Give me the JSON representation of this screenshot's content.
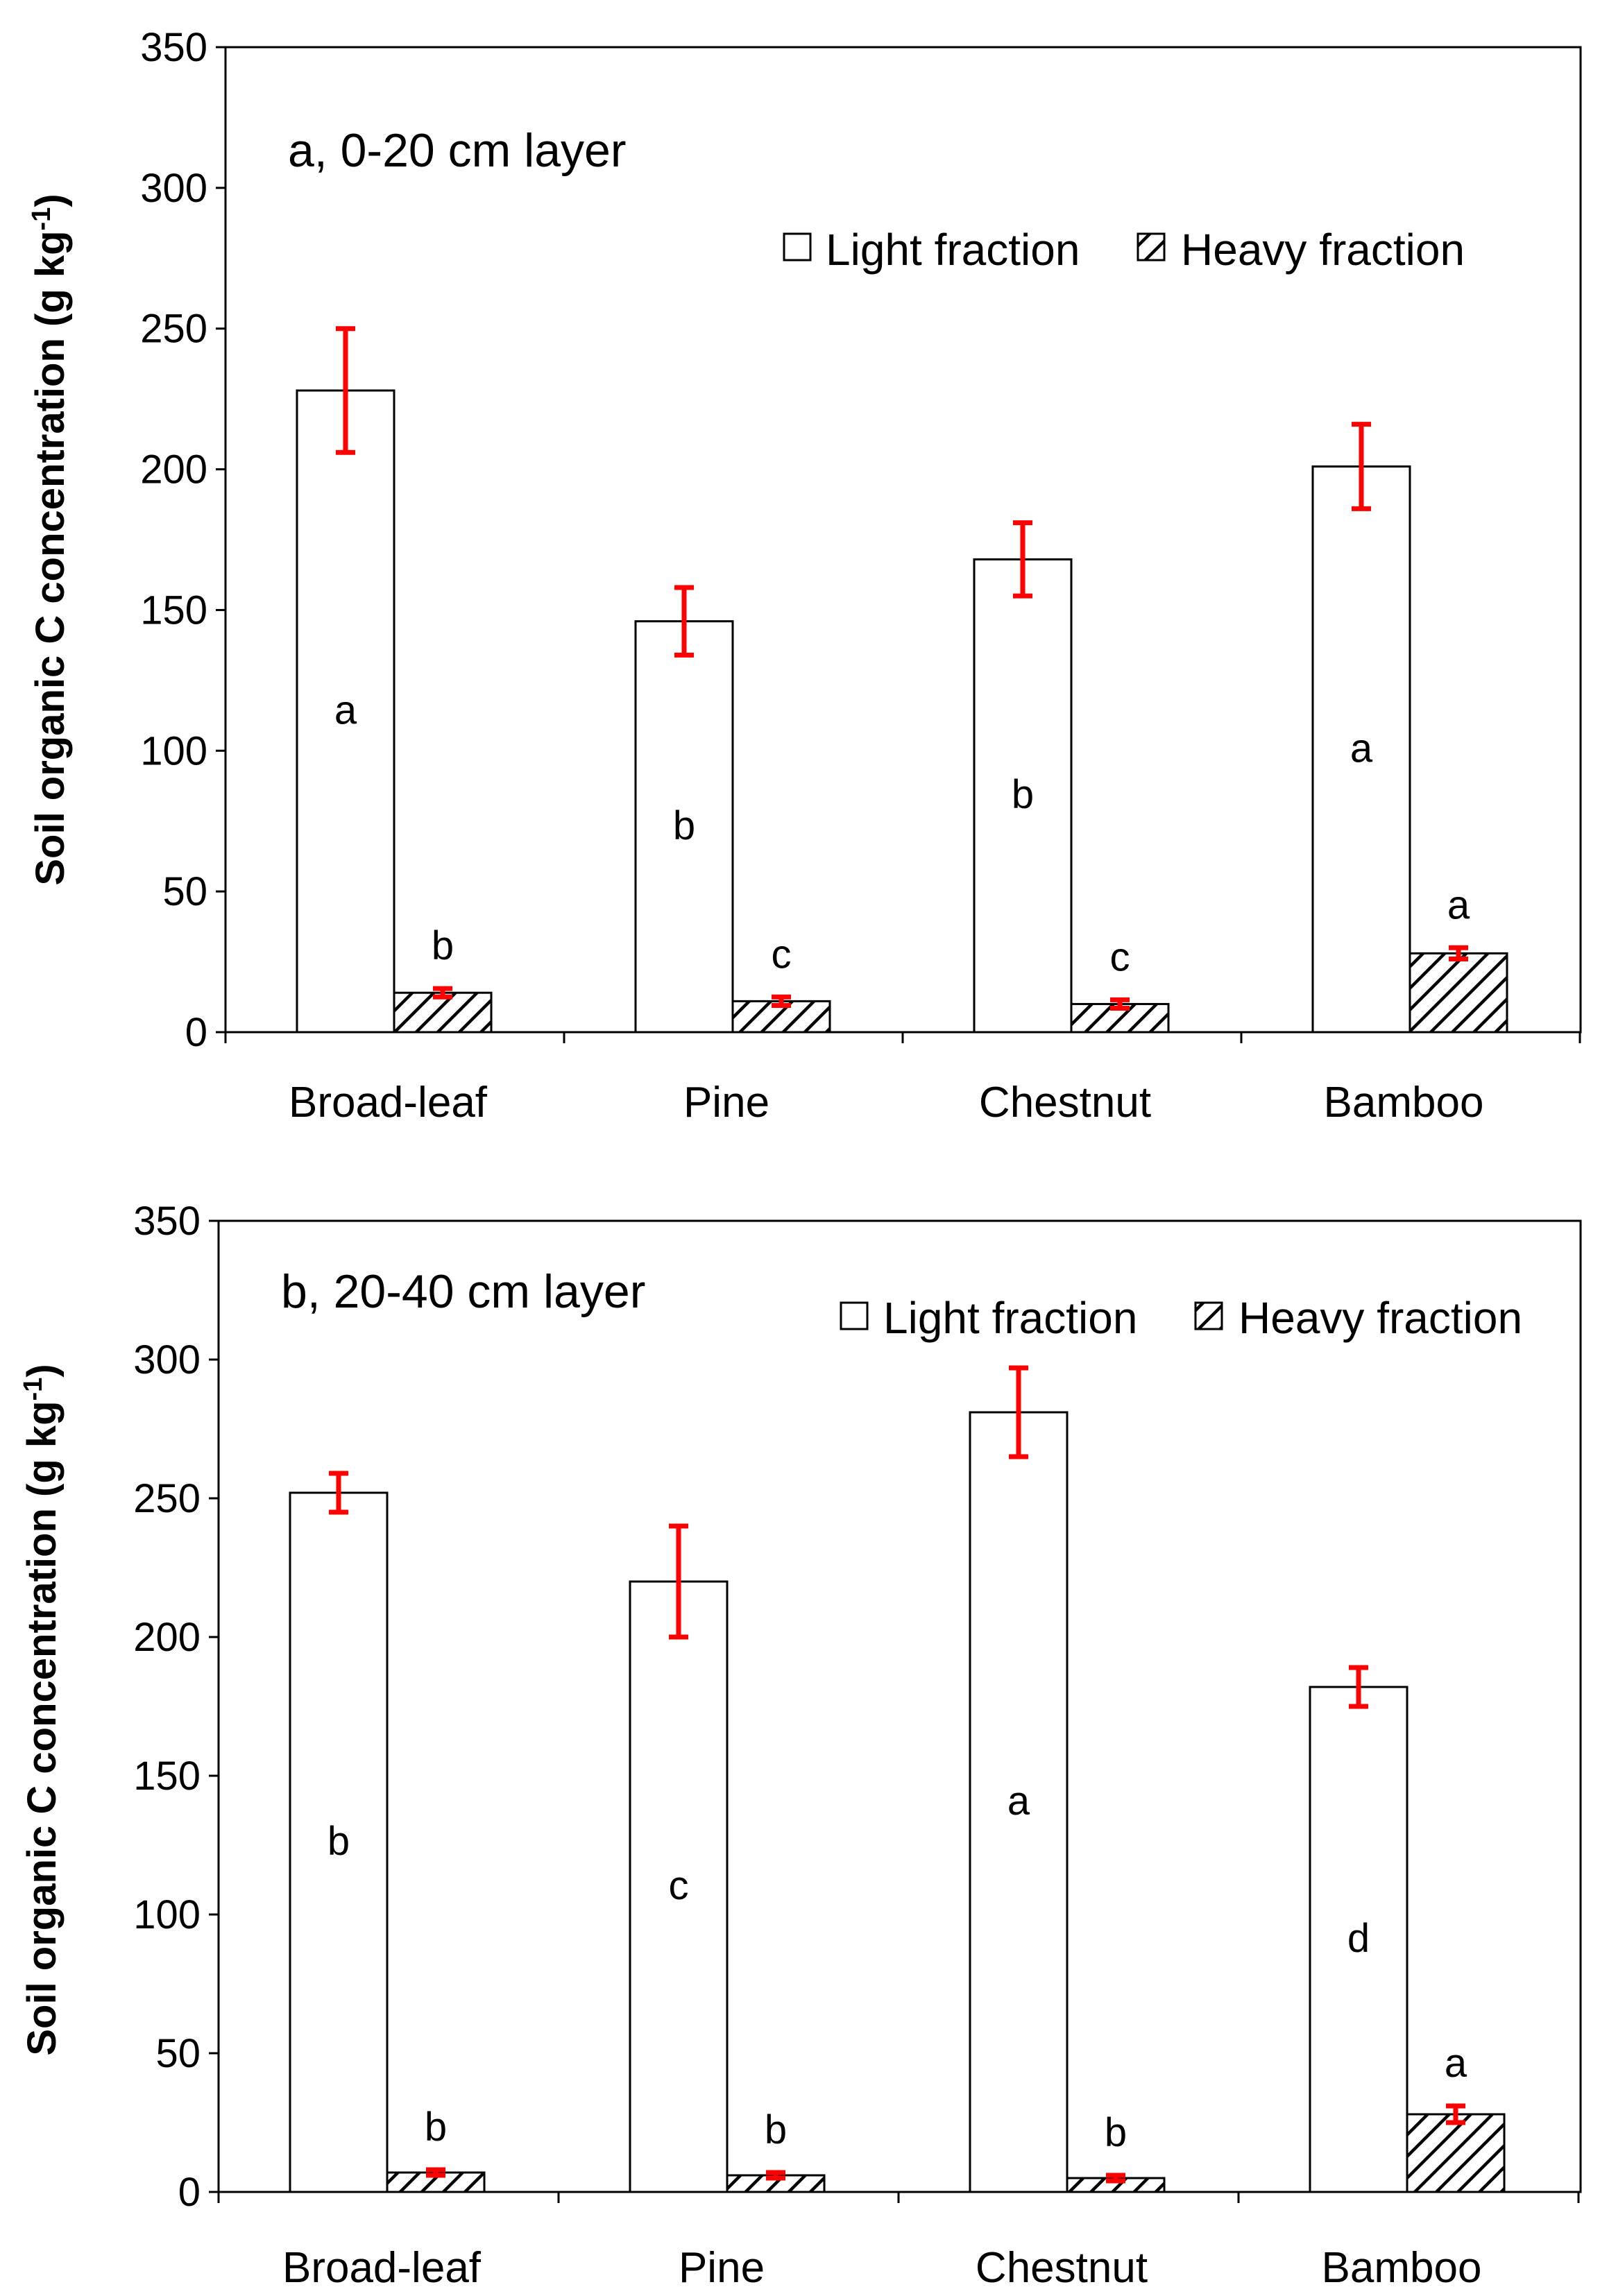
{
  "chart_data": [
    {
      "type": "bar",
      "title": "a, 0-20 cm layer",
      "ylabel": "Soil organic C concentration (g kg",
      "ylabel_sup": "-1",
      "ylabel_close": ")",
      "ylim": [
        0,
        350
      ],
      "yticks": [
        "0",
        "50",
        "100",
        "150",
        "200",
        "250",
        "300",
        "350"
      ],
      "categories": [
        "Broad-leaf",
        "Pine",
        "Chestnut",
        "Bamboo"
      ],
      "legend": [
        "Light fraction",
        "Heavy fraction"
      ],
      "series": [
        {
          "name": "Light fraction",
          "values": [
            228,
            146,
            168,
            201
          ],
          "errors": [
            22,
            12,
            13,
            15
          ],
          "letters": [
            "a",
            "b",
            "b",
            "a"
          ]
        },
        {
          "name": "Heavy fraction",
          "values": [
            14,
            11,
            10,
            28
          ],
          "errors": [
            1.5,
            1.5,
            1.5,
            2
          ],
          "letters": [
            "b",
            "c",
            "c",
            "a"
          ]
        }
      ]
    },
    {
      "type": "bar",
      "title": "b, 20-40 cm layer",
      "ylabel": "Soil organic C concentration (g kg",
      "ylabel_sup": "-1",
      "ylabel_close": ")",
      "ylim": [
        0,
        350
      ],
      "yticks": [
        "0",
        "50",
        "100",
        "150",
        "200",
        "250",
        "300",
        "350"
      ],
      "categories": [
        "Broad-leaf",
        "Pine",
        "Chestnut",
        "Bamboo"
      ],
      "legend": [
        "Light fraction",
        "Heavy fraction"
      ],
      "series": [
        {
          "name": "Light fraction",
          "values": [
            252,
            220,
            281,
            182
          ],
          "errors": [
            7,
            20,
            16,
            7
          ],
          "letters": [
            "b",
            "c",
            "a",
            "d"
          ]
        },
        {
          "name": "Heavy fraction",
          "values": [
            7,
            6,
            5,
            28
          ],
          "errors": [
            1,
            1,
            1,
            3
          ],
          "letters": [
            "b",
            "b",
            "b",
            "a"
          ]
        }
      ]
    }
  ],
  "colors": {
    "error_bar": "#ff0000",
    "axis": "#000000",
    "bar_fill": "#ffffff"
  }
}
